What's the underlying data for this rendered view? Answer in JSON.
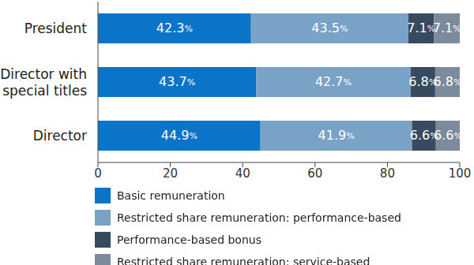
{
  "chart_data": {
    "type": "bar",
    "orientation": "horizontal",
    "stacked": true,
    "data_labels": true,
    "grid": false,
    "legend": "bottom",
    "categories": [
      "President",
      "Director with special titles",
      "Director"
    ],
    "xlim": [
      0,
      100
    ],
    "xticks": [
      0,
      20,
      40,
      60,
      80,
      100
    ],
    "series": [
      {
        "name": "Basic remuneration",
        "color": "#0a74c9",
        "values": [
          42.3,
          43.7,
          44.9
        ],
        "value_labels": [
          "42.3%",
          "43.7%",
          "44.9%"
        ]
      },
      {
        "name": "Restricted share remuneration: performance-based",
        "color": "#7aa2c6",
        "values": [
          43.5,
          42.7,
          41.9
        ],
        "value_labels": [
          "43.5%",
          "42.7%",
          "41.9%"
        ]
      },
      {
        "name": "Performance-based bonus",
        "color": "#364b60",
        "values": [
          7.1,
          6.8,
          6.6
        ],
        "value_labels": [
          "7.1%",
          "6.8%",
          "6.6%"
        ]
      },
      {
        "name": "Restricted share remuneration: service-based",
        "color": "#7b8b9b",
        "values": [
          7.1,
          6.8,
          6.6
        ],
        "value_labels": [
          "7.1%",
          "6.8%",
          "6.6%"
        ]
      }
    ]
  }
}
